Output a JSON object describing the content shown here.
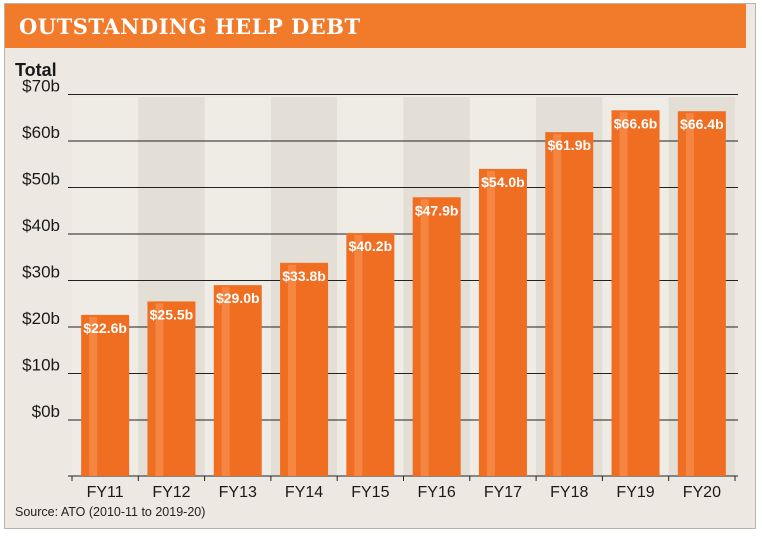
{
  "header": {
    "title": "OUTSTANDING HELP DEBT"
  },
  "subtitle": "Total",
  "source": "Source: ATO (2010-11 to 2019-20)",
  "colors": {
    "bar": "#f06e22",
    "bar_highlight": "#f59050",
    "header": "#f17a2b",
    "band_dark": "#e3ded6",
    "band_light": "#efebe5"
  },
  "chart_data": {
    "type": "bar",
    "title": "OUTSTANDING HELP DEBT",
    "ylabel": "Total",
    "xlabel": "",
    "categories": [
      "FY11",
      "FY12",
      "FY13",
      "FY14",
      "FY15",
      "FY16",
      "FY17",
      "FY18",
      "FY19",
      "FY20"
    ],
    "values": [
      22.6,
      25.5,
      29.0,
      33.8,
      40.2,
      47.9,
      54.0,
      61.9,
      66.6,
      66.4
    ],
    "value_labels": [
      "$22.6b",
      "$25.5b",
      "$29.0b",
      "$33.8b",
      "$40.2b",
      "$47.9b",
      "$54.0b",
      "$61.9b",
      "$66.6b",
      "$66.4b"
    ],
    "y_ticks": [
      0,
      10,
      20,
      30,
      40,
      50,
      60,
      70
    ],
    "y_tick_labels": [
      "$0b",
      "$10b",
      "$20b",
      "$30b",
      "$40b",
      "$50b",
      "$60b",
      "$70b"
    ],
    "ylim": [
      0,
      70
    ],
    "grid": true,
    "legend": "none"
  }
}
